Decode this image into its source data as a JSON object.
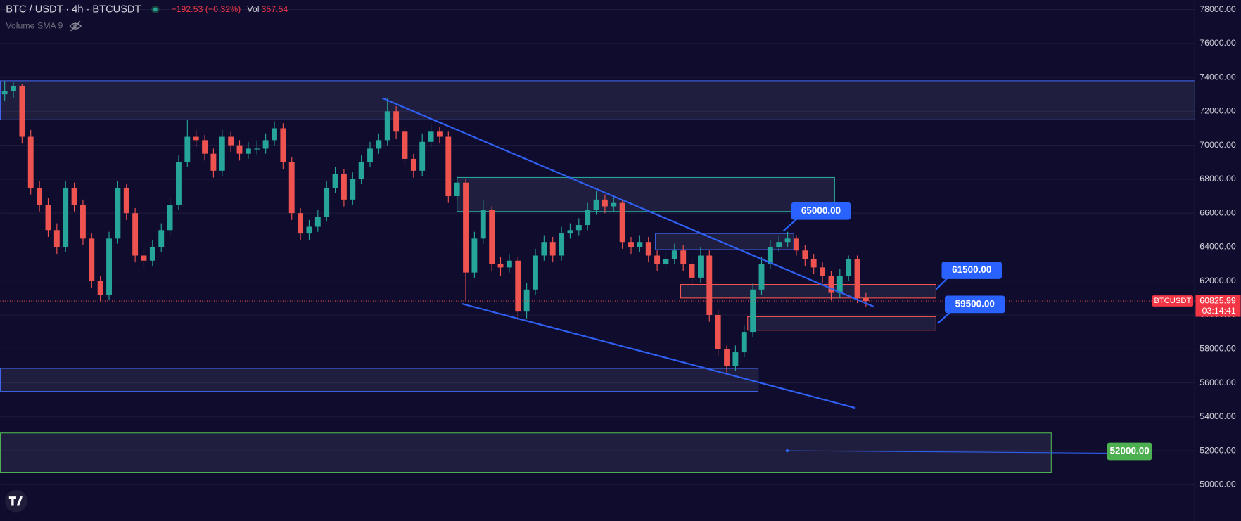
{
  "chart_data": {
    "type": "candlestick",
    "title": "BTC / USDT · 4h · BTCUSDT",
    "change": "−192.53 (−0.32%)",
    "volume_label": "Vol",
    "volume": 357.54,
    "indicator": "Volume SMA 9",
    "symbol": "BTCUSDT",
    "last_price": 60825.99,
    "countdown": "03:14:41",
    "up_color": "#26a69a",
    "down_color": "#ef5350",
    "grid": true,
    "categories": [
      null,
      null,
      null,
      null,
      null,
      null,
      null,
      null,
      null,
      null,
      null,
      null,
      null,
      null,
      null,
      null,
      null,
      null,
      null,
      null,
      null,
      null,
      null,
      null,
      null,
      null,
      null,
      null,
      null,
      null,
      null,
      null,
      null,
      null,
      null,
      null,
      null,
      null,
      null,
      null,
      null,
      null,
      null,
      null,
      null,
      null,
      null,
      null,
      null,
      null,
      null,
      null,
      null,
      null,
      null,
      null,
      null,
      null,
      null,
      null,
      null,
      null,
      null,
      null,
      null,
      null,
      null,
      null,
      null,
      null,
      null,
      null,
      null,
      null,
      null,
      null,
      null,
      null,
      null,
      null,
      null,
      null,
      null,
      null,
      null,
      null,
      null,
      null,
      null,
      null,
      null,
      null,
      null,
      null,
      null,
      null,
      null,
      null,
      null,
      null
    ],
    "open": [
      73000,
      73200,
      73500,
      70500,
      67500,
      66500,
      65000,
      64000,
      67500,
      66500,
      64500,
      62000,
      61200,
      64500,
      67500,
      66000,
      63500,
      63200,
      64000,
      65000,
      66500,
      69000,
      70500,
      70300,
      69500,
      68500,
      70500,
      70000,
      69500,
      69800,
      69800,
      70300,
      71000,
      69000,
      66000,
      64800,
      65200,
      65800,
      67500,
      68300,
      66800,
      68000,
      69000,
      69800,
      70300,
      72000,
      70800,
      69200,
      68500,
      70200,
      70800,
      70500,
      67000,
      67800,
      62500,
      64500,
      66200,
      63000,
      62800,
      63200,
      60200,
      61500,
      63500,
      64300,
      63500,
      64800,
      65000,
      65300,
      66200,
      66800,
      66400,
      66600,
      64300,
      64000,
      64300,
      63500,
      63000,
      63300,
      63800,
      63000,
      62200,
      63500,
      60000,
      58000,
      57000,
      57800,
      59000,
      61500,
      63000,
      64000,
      64300,
      64500,
      63800,
      63300,
      62800,
      62300,
      61300,
      62300,
      63300,
      61000
    ],
    "high": [
      73800,
      73700,
      73600,
      70900,
      67900,
      66900,
      65400,
      67900,
      67800,
      66800,
      64800,
      62300,
      64900,
      67900,
      67700,
      66300,
      63900,
      64400,
      65400,
      66900,
      69400,
      71500,
      70900,
      70600,
      69800,
      70900,
      70800,
      70300,
      70200,
      70300,
      70700,
      71400,
      71300,
      69300,
      66300,
      65600,
      66200,
      67900,
      68700,
      68600,
      68400,
      69400,
      70200,
      70700,
      72800,
      72300,
      71100,
      69500,
      70700,
      71200,
      71100,
      70800,
      68200,
      68000,
      64900,
      66800,
      66400,
      63400,
      63600,
      63400,
      61900,
      63900,
      64700,
      64600,
      65200,
      65400,
      65700,
      66600,
      67300,
      67100,
      67000,
      66800,
      64600,
      64700,
      64600,
      63800,
      63700,
      64200,
      64100,
      63300,
      64000,
      63800,
      60300,
      58200,
      58200,
      59400,
      61900,
      63400,
      64400,
      64700,
      64900,
      64700,
      64100,
      63600,
      63100,
      62600,
      62700,
      63500,
      63500,
      61300
    ],
    "low": [
      72600,
      72800,
      70100,
      67100,
      66100,
      64600,
      63600,
      63700,
      66100,
      64100,
      61600,
      60800,
      60900,
      64200,
      65600,
      63100,
      62700,
      62900,
      63700,
      64700,
      66200,
      68700,
      69900,
      69100,
      68100,
      68200,
      69600,
      69100,
      69200,
      69400,
      69500,
      70000,
      68600,
      65600,
      64400,
      64400,
      64900,
      65500,
      67200,
      66400,
      66500,
      67700,
      68700,
      69500,
      70000,
      70400,
      68800,
      68100,
      68200,
      69900,
      70100,
      66600,
      66700,
      60800,
      62200,
      64200,
      62600,
      62300,
      62500,
      59700,
      59800,
      61200,
      63200,
      63100,
      63200,
      64500,
      64700,
      65000,
      65900,
      66000,
      66100,
      63900,
      63600,
      63700,
      63100,
      62600,
      62700,
      63000,
      62600,
      61800,
      61900,
      59600,
      57600,
      56600,
      56700,
      57500,
      58700,
      61200,
      62700,
      63700,
      64000,
      63500,
      62900,
      62400,
      61900,
      60900,
      61000,
      62000,
      60700,
      60500
    ],
    "close": [
      73200,
      73500,
      70500,
      67500,
      66500,
      65000,
      64000,
      67500,
      66500,
      64500,
      62000,
      61200,
      64500,
      67500,
      66000,
      63500,
      63200,
      64000,
      65000,
      66500,
      69000,
      70500,
      70300,
      69500,
      68500,
      70500,
      70000,
      69500,
      69800,
      69800,
      70300,
      71000,
      69000,
      66000,
      64800,
      65200,
      65800,
      67500,
      68300,
      66800,
      68000,
      69000,
      69800,
      70300,
      72000,
      70800,
      69200,
      68500,
      70200,
      70800,
      70500,
      67000,
      67800,
      62500,
      64500,
      66200,
      63000,
      62800,
      63200,
      60200,
      61500,
      63500,
      64300,
      63500,
      64800,
      65000,
      65300,
      66200,
      66800,
      66400,
      66600,
      64300,
      64000,
      64300,
      63500,
      63000,
      63300,
      63800,
      63000,
      62200,
      63500,
      60000,
      58000,
      57000,
      57800,
      59000,
      61500,
      63000,
      64000,
      64300,
      64500,
      63800,
      63300,
      62800,
      62300,
      61300,
      62300,
      63300,
      61000,
      60826
    ],
    "xlim": [
      -0.5,
      136.8
    ],
    "ylim": [
      47860,
      78560
    ],
    "yticks": [
      {
        "value": 78000,
        "label": "78000.00"
      },
      {
        "value": 76000,
        "label": "76000.00"
      },
      {
        "value": 74000,
        "label": "74000.00"
      },
      {
        "value": 72000,
        "label": "72000.00"
      },
      {
        "value": 70000,
        "label": "70000.00"
      },
      {
        "value": 68000,
        "label": "68000.00"
      },
      {
        "value": 66000,
        "label": "66000.00"
      },
      {
        "value": 64000,
        "label": "64000.00"
      },
      {
        "value": 62000,
        "label": "62000.00"
      },
      {
        "value": 60000,
        "label": "60000.00"
      },
      {
        "value": 58000,
        "label": "58000.00"
      },
      {
        "value": 56000,
        "label": "56000.00"
      },
      {
        "value": 54000,
        "label": "54000.00"
      },
      {
        "value": 52000,
        "label": "52000.00"
      },
      {
        "value": 50000,
        "label": "50000.00"
      }
    ],
    "zones": [
      {
        "x": [
          -0.5,
          136.8
        ],
        "top": 73800,
        "bottom": 71500,
        "color": "#3d63e8"
      },
      {
        "x": [
          52,
          95.4
        ],
        "top": 68100,
        "bottom": 66100,
        "color": "#26a69a"
      },
      {
        "x": [
          74.8,
          90.7
        ],
        "top": 64800,
        "bottom": 63850,
        "color": "#3d63e8"
      },
      {
        "x": [
          77.7,
          107.05
        ],
        "top": 61800,
        "bottom": 61000,
        "color": "#ef5350"
      },
      {
        "x": [
          85.4,
          107.05
        ],
        "top": 59900,
        "bottom": 59100,
        "color": "#ef5350"
      },
      {
        "x": [
          -0.5,
          86.6
        ],
        "top": 56850,
        "bottom": 55500,
        "color": "#3d63e8"
      },
      {
        "x": [
          -0.5,
          120.3
        ],
        "top": 53050,
        "bottom": 50700,
        "color": "#4caf50"
      }
    ],
    "trendlines": [
      {
        "x": [
          43.4,
          99.95
        ],
        "y": [
          72780,
          60480
        ],
        "color": "#2f5ff0"
      },
      {
        "x": [
          52.5,
          97.8
        ],
        "y": [
          60670,
          54520
        ],
        "color": "#2f5ff0"
      },
      {
        "x": [
          89.95,
          127.2
        ],
        "y": [
          52000,
          51860
        ],
        "color": "#2f5ff0"
      }
    ],
    "annotations": [
      {
        "label": "65000.00",
        "color": "#2962ff"
      },
      {
        "label": "61500.00",
        "color": "#2962ff"
      },
      {
        "label": "59500.00",
        "color": "#2962ff"
      },
      {
        "label": "52000.00",
        "color": "#4caf50"
      }
    ]
  }
}
